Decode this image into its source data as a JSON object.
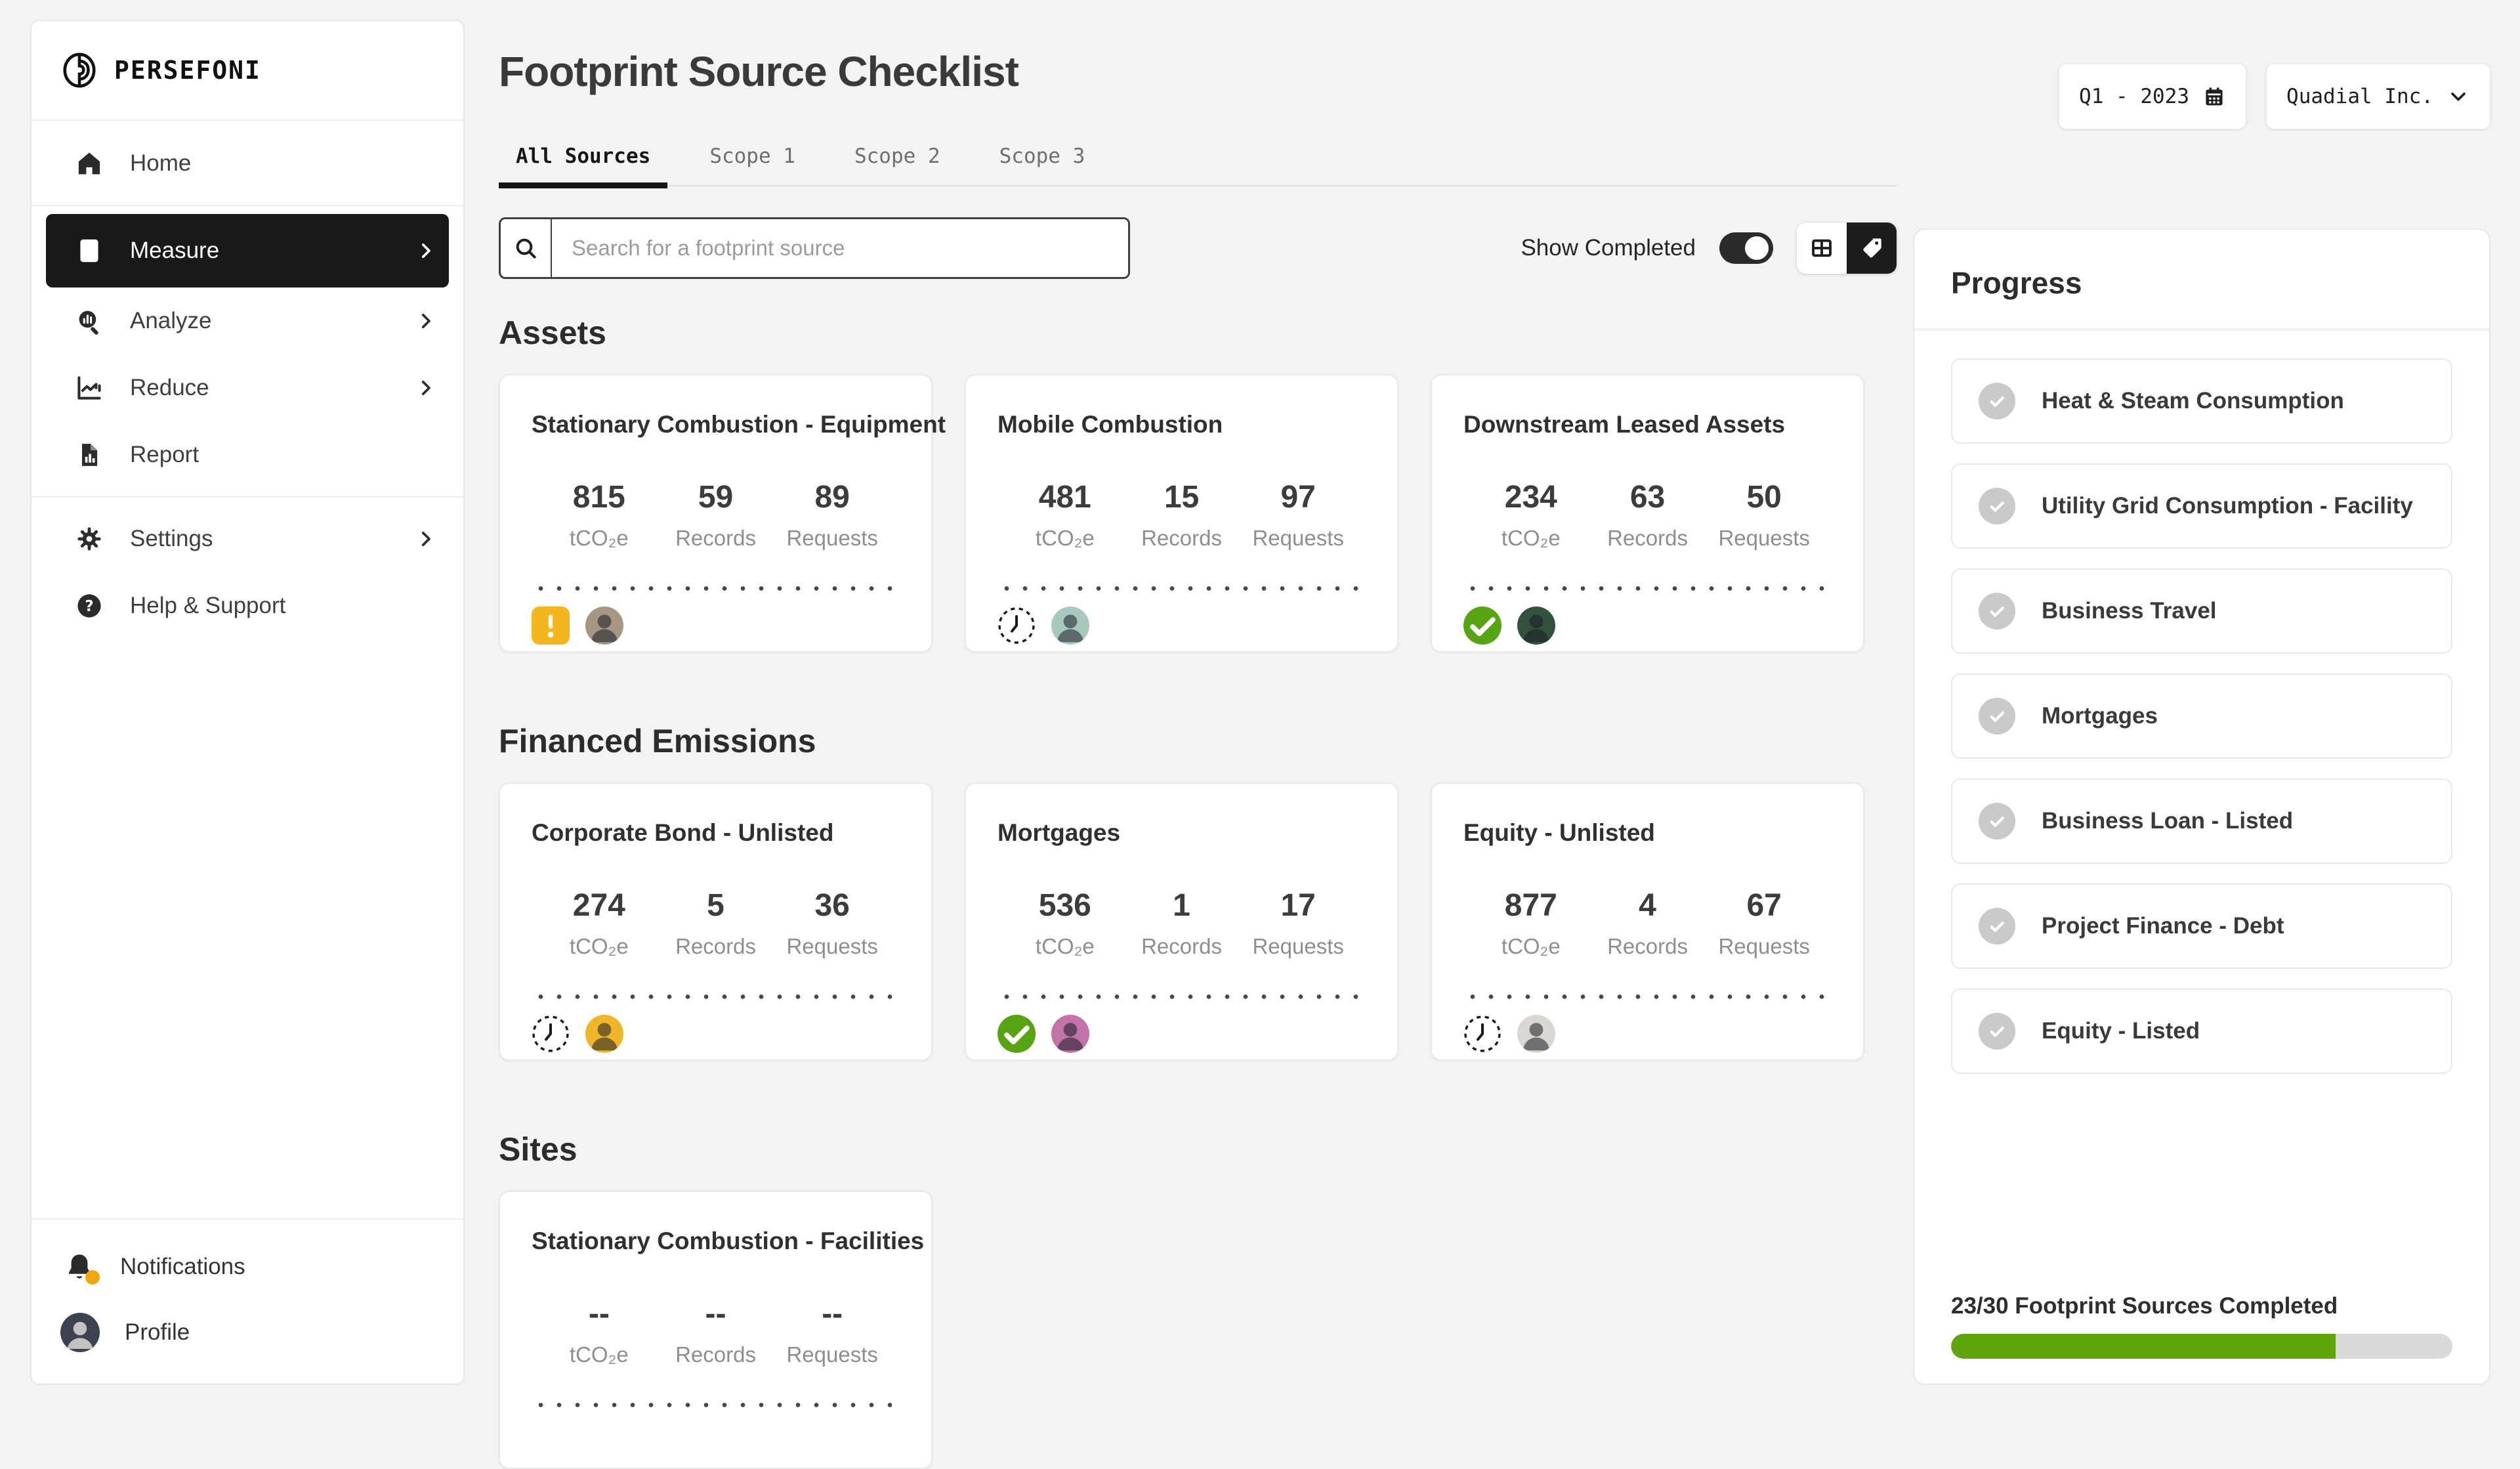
{
  "app": {
    "logo_text": "PERSEFONI"
  },
  "sidebar": {
    "nav": [
      {
        "id": "home",
        "label": "Home",
        "icon": "home",
        "selected": false,
        "expandable": false,
        "group": 1
      },
      {
        "id": "measure",
        "label": "Measure",
        "icon": "calculator",
        "selected": true,
        "expandable": true,
        "group": 2
      },
      {
        "id": "analyze",
        "label": "Analyze",
        "icon": "analyze",
        "selected": false,
        "expandable": true,
        "group": 2
      },
      {
        "id": "reduce",
        "label": "Reduce",
        "icon": "reduce",
        "selected": false,
        "expandable": true,
        "group": 2
      },
      {
        "id": "report",
        "label": "Report",
        "icon": "report",
        "selected": false,
        "expandable": false,
        "group": 2
      },
      {
        "id": "settings",
        "label": "Settings",
        "icon": "gear",
        "selected": false,
        "expandable": true,
        "group": 3
      },
      {
        "id": "help",
        "label": "Help & Support",
        "icon": "question",
        "selected": false,
        "expandable": false,
        "group": 3
      }
    ],
    "bottom": {
      "notifications_label": "Notifications",
      "has_notification_badge": true,
      "profile_label": "Profile",
      "profile_avatar_color": "#3c4250"
    }
  },
  "header": {
    "title": "Footprint Source Checklist",
    "period_label": "Q1 - 2023",
    "company_label": "Quadial Inc."
  },
  "tabs": [
    {
      "label": "All Sources",
      "active": true
    },
    {
      "label": "Scope 1",
      "active": false
    },
    {
      "label": "Scope 2",
      "active": false
    },
    {
      "label": "Scope 3",
      "active": false
    }
  ],
  "toolbar": {
    "search_placeholder": "Search for a footprint source",
    "show_completed_label": "Show Completed",
    "show_completed_on": true
  },
  "stat_labels": {
    "emissions": "tCO₂e",
    "records": "Records",
    "requests": "Requests"
  },
  "sections": [
    {
      "title": "Assets",
      "cards": [
        {
          "title": "Stationary Combustion - Equipment",
          "tco2e": "815",
          "records": "59",
          "requests": "89",
          "status": "warning",
          "avatar_color": "#a89684"
        },
        {
          "title": "Mobile Combustion",
          "tco2e": "481",
          "records": "15",
          "requests": "97",
          "status": "pending",
          "avatar_color": "#a8cabe"
        },
        {
          "title": "Downstream Leased Assets",
          "tco2e": "234",
          "records": "63",
          "requests": "50",
          "status": "complete",
          "avatar_color": "#33523e"
        }
      ]
    },
    {
      "title": "Financed Emissions",
      "cards": [
        {
          "title": "Corporate Bond - Unlisted",
          "tco2e": "274",
          "records": "5",
          "requests": "36",
          "status": "pending",
          "avatar_color": "#f0b62a"
        },
        {
          "title": "Mortgages",
          "tco2e": "536",
          "records": "1",
          "requests": "17",
          "status": "complete",
          "avatar_color": "#c274a8"
        },
        {
          "title": "Equity - Unlisted",
          "tco2e": "877",
          "records": "4",
          "requests": "67",
          "status": "pending",
          "avatar_color": "#d9d7d3"
        }
      ]
    },
    {
      "title": "Sites",
      "cards": [
        {
          "title": "Stationary Combustion - Facilities",
          "tco2e": "--",
          "records": "--",
          "requests": "--",
          "status": null,
          "avatar_color": null
        }
      ]
    }
  ],
  "progress_panel": {
    "title": "Progress",
    "items": [
      "Heat & Steam Consumption",
      "Utility Grid Consumption - Facility",
      "Business Travel",
      "Mortgages",
      "Business Loan - Listed",
      "Project Finance - Debt",
      "Equity - Listed"
    ],
    "completed_text": "23/30 Footprint Sources Completed",
    "completed": 23,
    "total": 30
  },
  "colors": {
    "progress_green": "#5fa60d",
    "check_green": "#57a412",
    "warning_orange": "#f5b51f",
    "notification_dot": "#f2a60c",
    "toggle_dark": "#2b2b2b"
  }
}
